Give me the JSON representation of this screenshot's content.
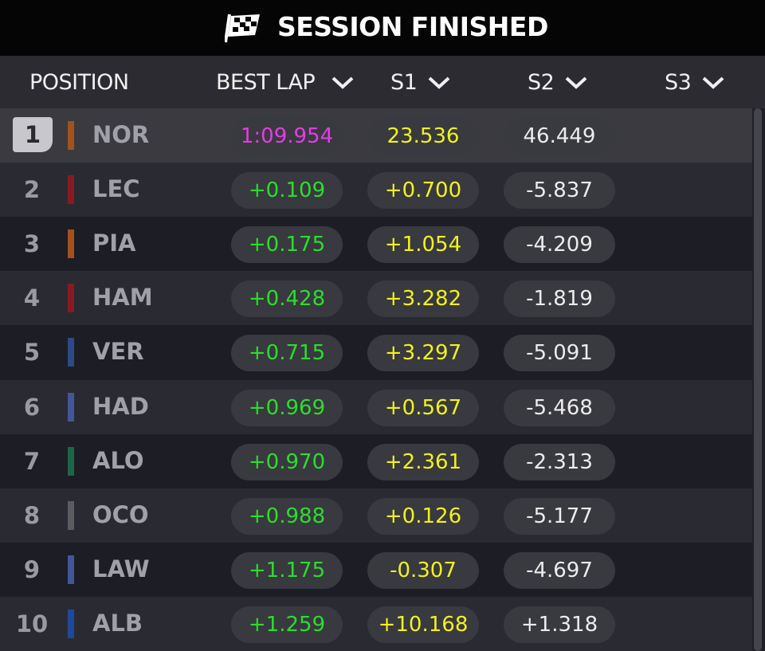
{
  "header": {
    "title": "SESSION FINISHED"
  },
  "columns": [
    "POSITION",
    "BEST LAP",
    "S1",
    "S2",
    "S3"
  ],
  "rows": [
    {
      "position": "1",
      "driver": "NOR",
      "team_color": "#a3521c",
      "best_lap": "1:09.954",
      "s1": "23.536",
      "s2": "46.449"
    },
    {
      "position": "2",
      "driver": "LEC",
      "team_color": "#8a1a22",
      "best_lap": "+0.109",
      "s1": "+0.700",
      "s2": "-5.837"
    },
    {
      "position": "3",
      "driver": "PIA",
      "team_color": "#a3521c",
      "best_lap": "+0.175",
      "s1": "+1.054",
      "s2": "-4.209"
    },
    {
      "position": "4",
      "driver": "HAM",
      "team_color": "#8a1a22",
      "best_lap": "+0.428",
      "s1": "+3.282",
      "s2": "-1.819"
    },
    {
      "position": "5",
      "driver": "VER",
      "team_color": "#2c4a86",
      "best_lap": "+0.715",
      "s1": "+3.297",
      "s2": "-5.091"
    },
    {
      "position": "6",
      "driver": "HAD",
      "team_color": "#41579a",
      "best_lap": "+0.969",
      "s1": "+0.567",
      "s2": "-5.468"
    },
    {
      "position": "7",
      "driver": "ALO",
      "team_color": "#1c6648",
      "best_lap": "+0.970",
      "s1": "+2.361",
      "s2": "-2.313"
    },
    {
      "position": "8",
      "driver": "OCO",
      "team_color": "#5c5c60",
      "best_lap": "+0.988",
      "s1": "+0.126",
      "s2": "-5.177"
    },
    {
      "position": "9",
      "driver": "LAW",
      "team_color": "#41579a",
      "best_lap": "+1.175",
      "s1": "-0.307",
      "s2": "-4.697"
    },
    {
      "position": "10",
      "driver": "ALB",
      "team_color": "#1e4a9c",
      "best_lap": "+1.259",
      "s1": "+10.168",
      "s2": "+1.318"
    }
  ]
}
